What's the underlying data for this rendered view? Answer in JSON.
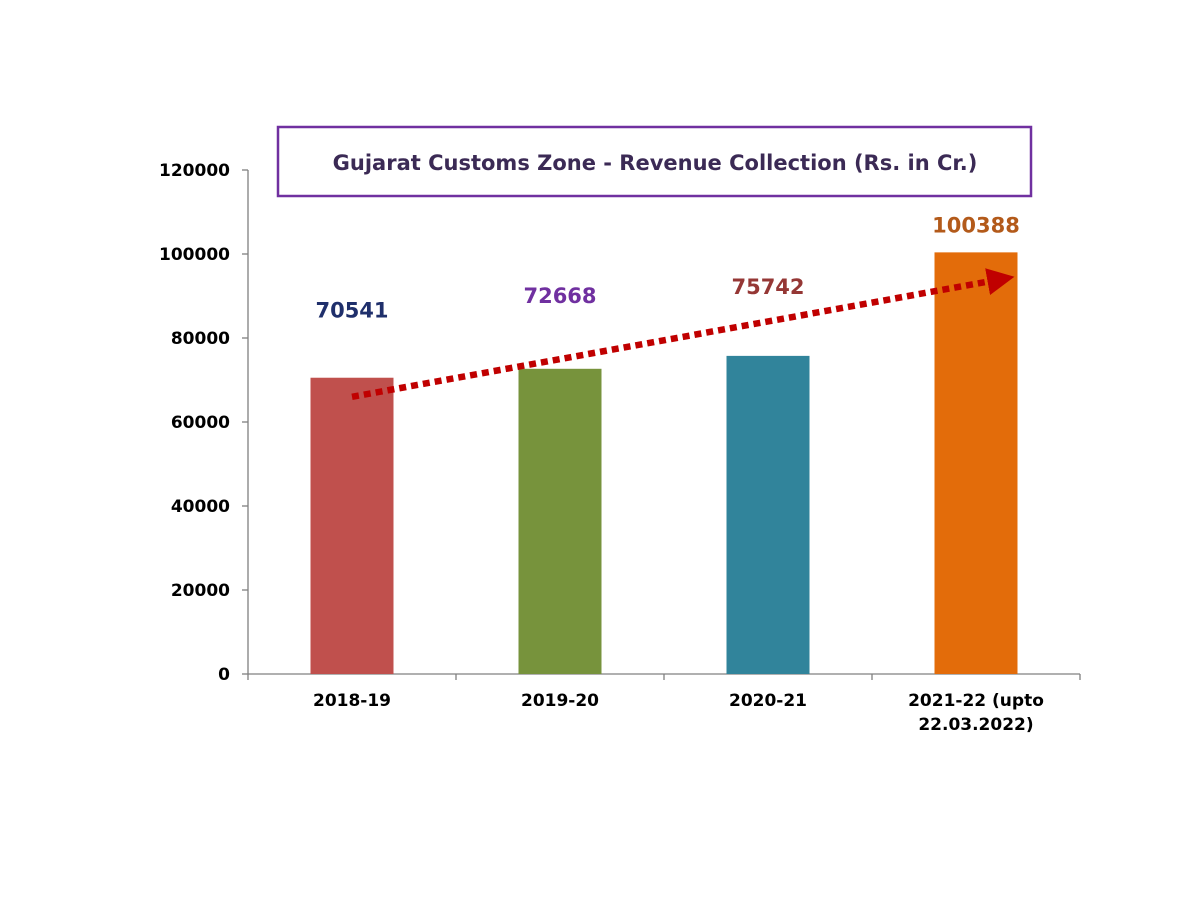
{
  "chart_data": {
    "type": "bar",
    "title": "Gujarat Customs Zone - Revenue Collection (Rs. in Cr.)",
    "xlabel": "",
    "ylabel": "",
    "ylim": [
      0,
      120000
    ],
    "yticks": [
      0,
      20000,
      40000,
      60000,
      80000,
      100000,
      120000
    ],
    "grid": false,
    "categories": [
      [
        "2018-19"
      ],
      [
        "2019-20"
      ],
      [
        "2020-21"
      ],
      [
        "2021-22 (upto",
        "22.03.2022)"
      ]
    ],
    "values": [
      70541,
      72668,
      75742,
      100388
    ],
    "bar_colors": [
      "#c0504d",
      "#77933c",
      "#31849b",
      "#e36c0a"
    ],
    "label_colors": [
      "#1f2f6b",
      "#7030a0",
      "#953735",
      "#b35a1a"
    ],
    "trend_arrow": {
      "style": "dotted",
      "color": "#c00000",
      "from_value": 66000,
      "to_value": 94000
    }
  }
}
